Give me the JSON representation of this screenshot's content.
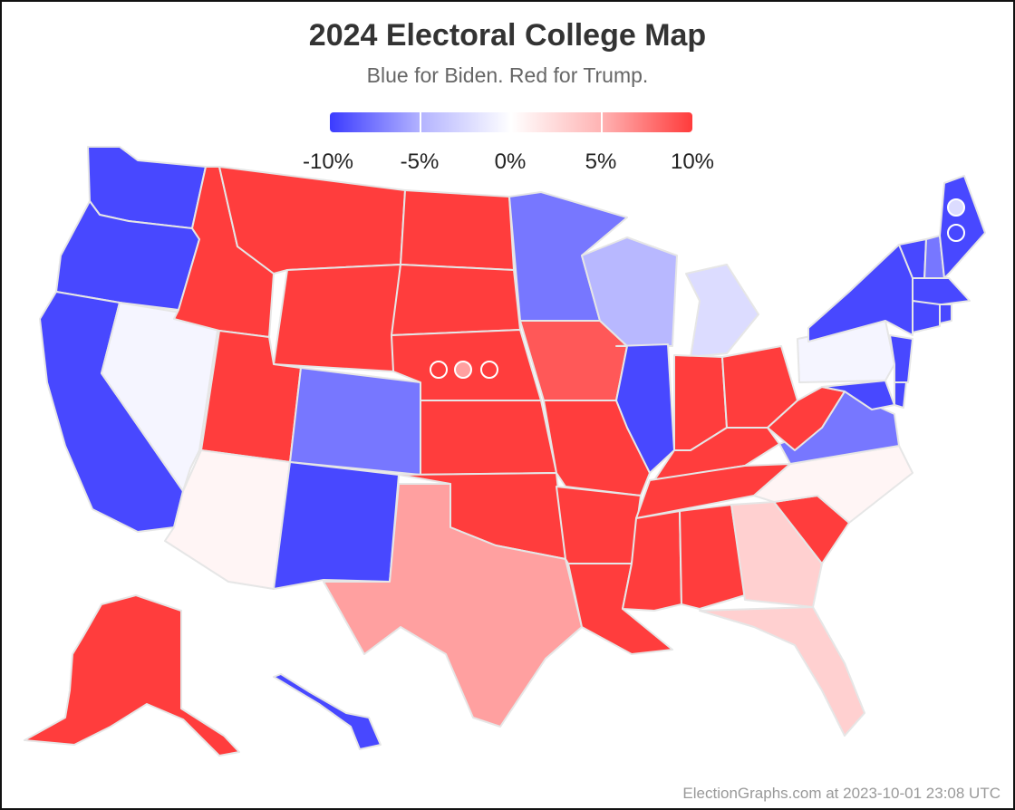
{
  "header": {
    "title": "2024 Electoral College Map",
    "subtitle": "Blue for Biden. Red for Trump."
  },
  "scale": {
    "labels": [
      "-10%",
      "-5%",
      "0%",
      "5%",
      "10%"
    ],
    "colors": {
      "strong_blue": "#4848ff",
      "medium_blue": "#7777ff",
      "light_blue": "#b8b8ff",
      "pale_blue": "#dcdcff",
      "faint_blue": "#f5f5ff",
      "faint_red": "#fff5f5",
      "pale_red": "#ffd0d0",
      "light_red": "#ffa0a0",
      "medium_red": "#ff5858",
      "strong_red": "#ff3d3d"
    }
  },
  "footer": {
    "credit": "ElectionGraphs.com at 2023-10-01 23:08 UTC"
  },
  "states": [
    {
      "abbr": "WA",
      "margin": "strong_blue"
    },
    {
      "abbr": "OR",
      "margin": "strong_blue"
    },
    {
      "abbr": "CA",
      "margin": "strong_blue"
    },
    {
      "abbr": "NV",
      "margin": "faint_blue"
    },
    {
      "abbr": "ID",
      "margin": "strong_red"
    },
    {
      "abbr": "MT",
      "margin": "strong_red"
    },
    {
      "abbr": "WY",
      "margin": "strong_red"
    },
    {
      "abbr": "UT",
      "margin": "strong_red"
    },
    {
      "abbr": "AZ",
      "margin": "faint_red"
    },
    {
      "abbr": "CO",
      "margin": "medium_blue"
    },
    {
      "abbr": "NM",
      "margin": "strong_blue"
    },
    {
      "abbr": "ND",
      "margin": "strong_red"
    },
    {
      "abbr": "SD",
      "margin": "strong_red"
    },
    {
      "abbr": "NE",
      "margin": "strong_red"
    },
    {
      "abbr": "KS",
      "margin": "strong_red"
    },
    {
      "abbr": "OK",
      "margin": "strong_red"
    },
    {
      "abbr": "TX",
      "margin": "light_red"
    },
    {
      "abbr": "MN",
      "margin": "medium_blue"
    },
    {
      "abbr": "IA",
      "margin": "medium_red"
    },
    {
      "abbr": "MO",
      "margin": "strong_red"
    },
    {
      "abbr": "AR",
      "margin": "strong_red"
    },
    {
      "abbr": "LA",
      "margin": "strong_red"
    },
    {
      "abbr": "WI",
      "margin": "light_blue"
    },
    {
      "abbr": "IL",
      "margin": "strong_blue"
    },
    {
      "abbr": "MI",
      "margin": "pale_blue"
    },
    {
      "abbr": "IN",
      "margin": "strong_red"
    },
    {
      "abbr": "OH",
      "margin": "strong_red"
    },
    {
      "abbr": "KY",
      "margin": "strong_red"
    },
    {
      "abbr": "TN",
      "margin": "strong_red"
    },
    {
      "abbr": "MS",
      "margin": "strong_red"
    },
    {
      "abbr": "AL",
      "margin": "strong_red"
    },
    {
      "abbr": "GA",
      "margin": "pale_red"
    },
    {
      "abbr": "FL",
      "margin": "pale_red"
    },
    {
      "abbr": "SC",
      "margin": "strong_red"
    },
    {
      "abbr": "NC",
      "margin": "faint_red"
    },
    {
      "abbr": "VA",
      "margin": "medium_blue"
    },
    {
      "abbr": "WV",
      "margin": "strong_red"
    },
    {
      "abbr": "PA",
      "margin": "faint_blue"
    },
    {
      "abbr": "NY",
      "margin": "strong_blue"
    },
    {
      "abbr": "NJ",
      "margin": "strong_blue"
    },
    {
      "abbr": "MD",
      "margin": "strong_blue"
    },
    {
      "abbr": "DE",
      "margin": "strong_blue"
    },
    {
      "abbr": "VT",
      "margin": "strong_blue"
    },
    {
      "abbr": "NH",
      "margin": "medium_blue"
    },
    {
      "abbr": "ME",
      "margin": "strong_blue"
    },
    {
      "abbr": "MA",
      "margin": "strong_blue"
    },
    {
      "abbr": "CT",
      "margin": "strong_blue"
    },
    {
      "abbr": "RI",
      "margin": "strong_blue"
    },
    {
      "abbr": "AK",
      "margin": "strong_red"
    },
    {
      "abbr": "HI",
      "margin": "strong_blue"
    }
  ],
  "districts": [
    {
      "id": "NE-1",
      "margin": "strong_red"
    },
    {
      "id": "NE-2",
      "margin": "light_red"
    },
    {
      "id": "NE-3",
      "margin": "strong_red"
    },
    {
      "id": "ME-1",
      "margin": "pale_blue"
    },
    {
      "id": "ME-2",
      "margin": "strong_blue"
    }
  ]
}
